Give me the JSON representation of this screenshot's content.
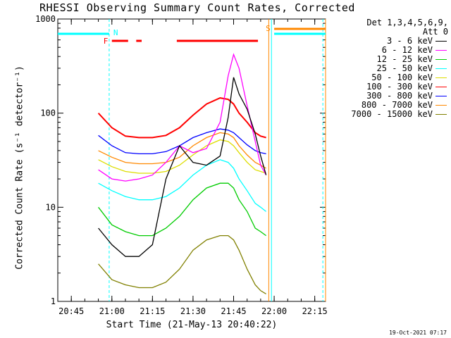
{
  "title": "RHESSI Observing Summary Count Rates, Corrected",
  "xlabel": "Start Time (21-May-13 20:40:22)",
  "ylabel": "Corrected Count Rate (s⁻¹ detector⁻¹)",
  "timestamp": "19-Oct-2021 07:17",
  "legend": {
    "detectors": "Det 1,3,4,5,6,9,",
    "attenuator": "Att 0",
    "entries": [
      {
        "label": "3 - 6 keV",
        "color": "#000000"
      },
      {
        "label": "6 - 12 keV",
        "color": "#ff00ff"
      },
      {
        "label": "12 - 25 keV",
        "color": "#00cc00"
      },
      {
        "label": "25 - 50 keV",
        "color": "#00ffff"
      },
      {
        "label": "50 - 100 keV",
        "color": "#dddd00"
      },
      {
        "label": "100 - 300 keV",
        "color": "#ff0000"
      },
      {
        "label": "300 - 800 keV",
        "color": "#0000ff"
      },
      {
        "label": "800 - 7000 keV",
        "color": "#ff8800"
      },
      {
        "label": "7000 - 15000 keV",
        "color": "#808000"
      }
    ]
  },
  "flags": {
    "N": {
      "label": "N",
      "color": "#00ffff"
    },
    "F": {
      "label": "F",
      "color": "#ff0000"
    },
    "S": {
      "label": "S",
      "color": "#ff8800"
    }
  },
  "chart_data": {
    "type": "line",
    "title": "RHESSI Observing Summary Count Rates, Corrected",
    "xlabel": "Start Time (21-May-13 20:40:22)",
    "ylabel": "Corrected Count Rate (s⁻¹ detector⁻¹)",
    "y_scale": "log",
    "ylim": [
      1,
      1000
    ],
    "xlim": [
      "20:40",
      "22:19"
    ],
    "x_ticks": [
      "20:45",
      "21:00",
      "21:15",
      "21:30",
      "21:45",
      "22:00",
      "22:15"
    ],
    "y_ticks": [
      "1",
      "10",
      "100",
      "1000"
    ],
    "x": [
      "20:55",
      "21:00",
      "21:05",
      "21:10",
      "21:15",
      "21:20",
      "21:25",
      "21:30",
      "21:35",
      "21:40",
      "21:43",
      "21:45",
      "21:47",
      "21:50",
      "21:53",
      "21:55",
      "21:57"
    ],
    "series": [
      {
        "name": "3 - 6 keV",
        "color": "#000000",
        "values": [
          6,
          4,
          3,
          3,
          4,
          20,
          45,
          30,
          28,
          35,
          90,
          240,
          160,
          110,
          60,
          35,
          22
        ]
      },
      {
        "name": "6 - 12 keV",
        "color": "#ff00ff",
        "values": [
          25,
          20,
          19,
          20,
          22,
          30,
          45,
          38,
          42,
          80,
          250,
          420,
          300,
          120,
          50,
          28,
          22
        ]
      },
      {
        "name": "12 - 25 keV",
        "color": "#00cc00",
        "values": [
          10,
          6.5,
          5.5,
          5,
          5,
          6,
          8,
          12,
          16,
          18,
          18,
          16,
          12,
          9,
          6,
          5.5,
          5
        ]
      },
      {
        "name": "25 - 50 keV",
        "color": "#00ffff",
        "values": [
          18,
          15,
          13,
          12,
          12,
          13,
          16,
          22,
          28,
          32,
          30,
          26,
          20,
          15,
          11,
          10,
          9
        ]
      },
      {
        "name": "50 - 100 keV",
        "color": "#dddd00",
        "values": [
          32,
          27,
          24,
          23,
          23,
          24,
          28,
          36,
          45,
          52,
          50,
          45,
          38,
          30,
          25,
          24,
          23
        ]
      },
      {
        "name": "100 - 300 keV",
        "color": "#ff0000",
        "values": [
          100,
          70,
          57,
          55,
          55,
          58,
          70,
          95,
          125,
          145,
          140,
          125,
          100,
          80,
          62,
          57,
          55
        ]
      },
      {
        "name": "300 - 800 keV",
        "color": "#0000ff",
        "values": [
          58,
          45,
          38,
          37,
          37,
          39,
          45,
          55,
          62,
          68,
          66,
          62,
          55,
          46,
          40,
          38,
          37
        ]
      },
      {
        "name": "800 - 7000 keV",
        "color": "#ff8800",
        "values": [
          40,
          34,
          30,
          29,
          29,
          30,
          34,
          45,
          55,
          62,
          60,
          55,
          45,
          36,
          30,
          28,
          26
        ]
      },
      {
        "name": "7000 - 15000 keV",
        "color": "#808000",
        "values": [
          2.5,
          1.7,
          1.5,
          1.4,
          1.4,
          1.6,
          2.2,
          3.5,
          4.5,
          5,
          5,
          4.5,
          3.5,
          2.2,
          1.5,
          1.3,
          1.2
        ]
      }
    ],
    "flag_intervals": {
      "N_line_left": [
        "20:40",
        "20:59"
      ],
      "N_line_right": [
        "22:00",
        "22:19"
      ],
      "F_segments": [
        [
          "21:00",
          "21:06"
        ],
        [
          "21:09",
          "21:11"
        ],
        [
          "21:24",
          "21:54"
        ]
      ],
      "S_line": [
        "22:00",
        "22:19"
      ]
    },
    "vertical_markers": [
      {
        "time": "20:59",
        "color": "#00ffff",
        "style": "dashed"
      },
      {
        "time": "21:58",
        "color": "#ff8800",
        "style": "solid"
      },
      {
        "time": "21:59",
        "color": "#00ffff",
        "style": "solid"
      },
      {
        "time": "22:18",
        "color": "#00ffff",
        "style": "dashed"
      },
      {
        "time": "22:19",
        "color": "#ff8800",
        "style": "solid"
      }
    ],
    "grid": false,
    "legend_position": "right"
  }
}
